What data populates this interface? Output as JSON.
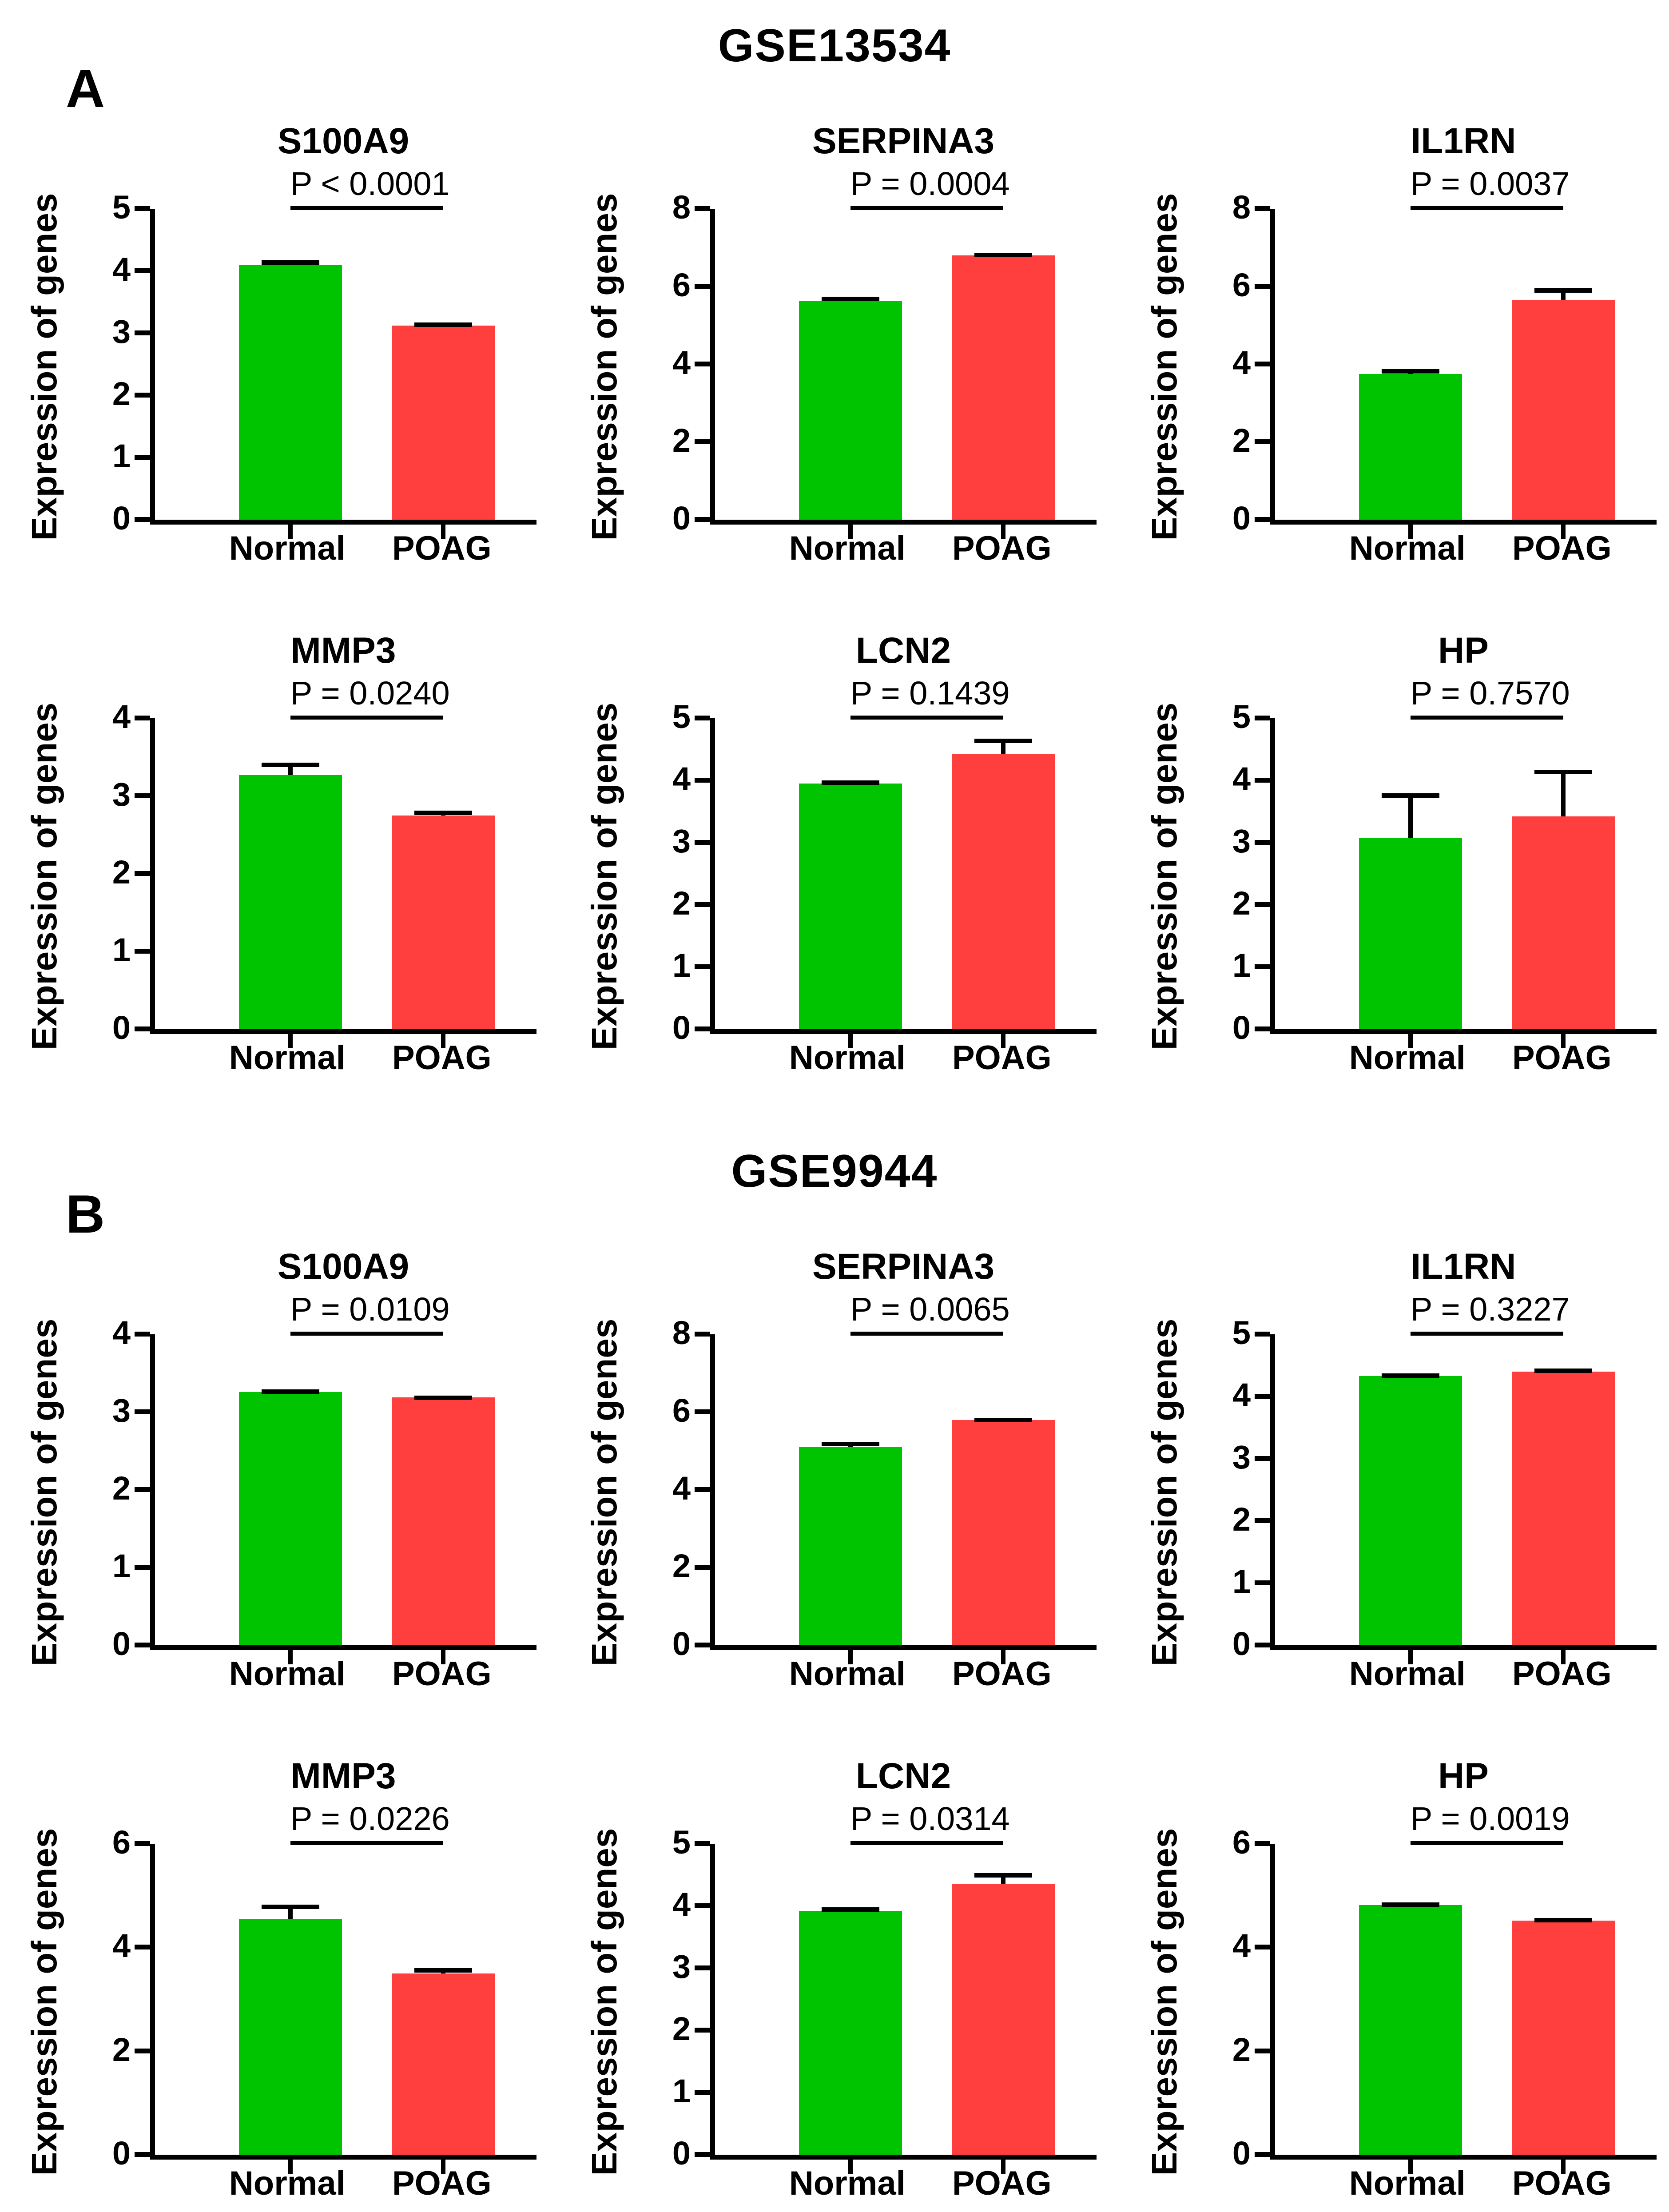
{
  "figure": {
    "ylabel": "Expression of genes",
    "groups": [
      "Normal",
      "POAG"
    ],
    "colors": {
      "normal": "#00C400",
      "poag": "#FF3E3E",
      "axis": "#000000"
    },
    "panels": [
      {
        "label": "A",
        "dataset": "GSE13534"
      },
      {
        "label": "B",
        "dataset": "GSE9944"
      }
    ]
  },
  "chart_data": [
    {
      "type": "bar",
      "panel": "A",
      "title": "S100A9",
      "p_label": "P < 0.0001",
      "ylabel": "Expression of genes",
      "categories": [
        "Normal",
        "POAG"
      ],
      "values": [
        4.1,
        3.12
      ],
      "errors": [
        0.07,
        0.05
      ],
      "yticks": [
        0,
        1,
        2,
        3,
        4,
        5
      ],
      "ylim": [
        0,
        5
      ]
    },
    {
      "type": "bar",
      "panel": "A",
      "title": "SERPINA3",
      "p_label": "P = 0.0004",
      "ylabel": "Expression of genes",
      "categories": [
        "Normal",
        "POAG"
      ],
      "values": [
        5.62,
        6.8
      ],
      "errors": [
        0.12,
        0.07
      ],
      "yticks": [
        0,
        2,
        4,
        6,
        8
      ],
      "ylim": [
        0,
        8
      ]
    },
    {
      "type": "bar",
      "panel": "A",
      "title": "IL1RN",
      "p_label": "P = 0.0037",
      "ylabel": "Expression of genes",
      "categories": [
        "Normal",
        "POAG"
      ],
      "values": [
        3.75,
        5.65
      ],
      "errors": [
        0.13,
        0.3
      ],
      "yticks": [
        0,
        2,
        4,
        6,
        8
      ],
      "ylim": [
        0,
        8
      ]
    },
    {
      "type": "bar",
      "panel": "A",
      "title": "MMP3",
      "p_label": "P = 0.0240",
      "ylabel": "Expression of genes",
      "categories": [
        "Normal",
        "POAG"
      ],
      "values": [
        3.27,
        2.75
      ],
      "errors": [
        0.16,
        0.06
      ],
      "yticks": [
        0,
        1,
        2,
        3,
        4
      ],
      "ylim": [
        0,
        4
      ]
    },
    {
      "type": "bar",
      "panel": "A",
      "title": "LCN2",
      "p_label": "P = 0.1439",
      "ylabel": "Expression of genes",
      "categories": [
        "Normal",
        "POAG"
      ],
      "values": [
        3.95,
        4.42
      ],
      "errors": [
        0.05,
        0.25
      ],
      "yticks": [
        0,
        1,
        2,
        3,
        4,
        5
      ],
      "ylim": [
        0,
        5
      ]
    },
    {
      "type": "bar",
      "panel": "A",
      "title": "HP",
      "p_label": "P = 0.7570",
      "ylabel": "Expression of genes",
      "categories": [
        "Normal",
        "POAG"
      ],
      "values": [
        3.07,
        3.42
      ],
      "errors": [
        0.72,
        0.75
      ],
      "yticks": [
        0,
        1,
        2,
        3,
        4,
        5
      ],
      "ylim": [
        0,
        5
      ]
    },
    {
      "type": "bar",
      "panel": "B",
      "title": "S100A9",
      "p_label": "P = 0.0109",
      "ylabel": "Expression of genes",
      "categories": [
        "Normal",
        "POAG"
      ],
      "values": [
        3.26,
        3.19
      ],
      "errors": [
        0.03,
        0.02
      ],
      "yticks": [
        0,
        1,
        2,
        3,
        4
      ],
      "ylim": [
        0,
        4
      ]
    },
    {
      "type": "bar",
      "panel": "B",
      "title": "SERPINA3",
      "p_label": "P = 0.0065",
      "ylabel": "Expression of genes",
      "categories": [
        "Normal",
        "POAG"
      ],
      "values": [
        5.1,
        5.8
      ],
      "errors": [
        0.14,
        0.05
      ],
      "yticks": [
        0,
        2,
        4,
        6,
        8
      ],
      "ylim": [
        0,
        8
      ]
    },
    {
      "type": "bar",
      "panel": "B",
      "title": "IL1RN",
      "p_label": "P = 0.3227",
      "ylabel": "Expression of genes",
      "categories": [
        "Normal",
        "POAG"
      ],
      "values": [
        4.33,
        4.4
      ],
      "errors": [
        0.04,
        0.05
      ],
      "yticks": [
        0,
        1,
        2,
        3,
        4,
        5
      ],
      "ylim": [
        0,
        5
      ]
    },
    {
      "type": "bar",
      "panel": "B",
      "title": "MMP3",
      "p_label": "P = 0.0226",
      "ylabel": "Expression of genes",
      "categories": [
        "Normal",
        "POAG"
      ],
      "values": [
        4.55,
        3.5
      ],
      "errors": [
        0.28,
        0.1
      ],
      "yticks": [
        0,
        2,
        4,
        6
      ],
      "ylim": [
        0,
        6
      ]
    },
    {
      "type": "bar",
      "panel": "B",
      "title": "LCN2",
      "p_label": "P = 0.0314",
      "ylabel": "Expression of genes",
      "categories": [
        "Normal",
        "POAG"
      ],
      "values": [
        3.92,
        4.36
      ],
      "errors": [
        0.06,
        0.17
      ],
      "yticks": [
        0,
        1,
        2,
        3,
        4,
        5
      ],
      "ylim": [
        0,
        5
      ]
    },
    {
      "type": "bar",
      "panel": "B",
      "title": "HP",
      "p_label": "P = 0.0019",
      "ylabel": "Expression of genes",
      "categories": [
        "Normal",
        "POAG"
      ],
      "values": [
        4.82,
        4.52
      ],
      "errors": [
        0.05,
        0.05
      ],
      "yticks": [
        0,
        2,
        4,
        6
      ],
      "ylim": [
        0,
        6
      ]
    }
  ]
}
